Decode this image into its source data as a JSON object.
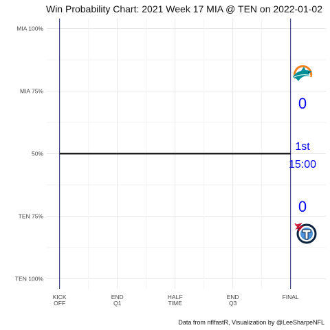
{
  "chart_data": {
    "type": "line",
    "title": "Win Probability Chart: 2021 Week 17 MIA @ TEN on 2022-01-02",
    "caption": "Data from nflfastR, Visualization by @LeeSharpeNFL",
    "y_ticks": [
      "MIA 100%",
      "MIA 75%",
      "50%",
      "TEN 75%",
      "TEN 100%"
    ],
    "y_tick_values": [
      1.0,
      0.75,
      0.5,
      0.25,
      0.0
    ],
    "x_ticks": [
      [
        "KICK",
        "OFF"
      ],
      [
        "END",
        "Q1"
      ],
      [
        "HALF",
        "TIME"
      ],
      [
        "END",
        "Q3"
      ],
      [
        "FINAL"
      ]
    ],
    "x_tick_values": [
      0,
      900,
      1800,
      2700,
      3600
    ],
    "xlim": [
      -200,
      4150
    ],
    "ylim": [
      -0.04,
      1.04
    ],
    "grid": true,
    "series": [
      {
        "x": [
          0,
          3600
        ],
        "y": [
          0.5,
          0.5
        ]
      }
    ],
    "vertical_lines": [
      0,
      3600
    ],
    "home_team": {
      "abbr": "TEN",
      "score": "0",
      "color": "#002a5c"
    },
    "away_team": {
      "abbr": "MIA",
      "score": "0",
      "color": "#008e97"
    },
    "game_status": {
      "quarter": "1st",
      "clock": "15:00"
    },
    "colors": {
      "text_accent": "#0000ee",
      "vline": "#1f2a6b",
      "wp_line": "#000000",
      "grid": "#e8e8e8"
    },
    "logos": [
      "dolphin-logo",
      "titans-logo"
    ]
  }
}
